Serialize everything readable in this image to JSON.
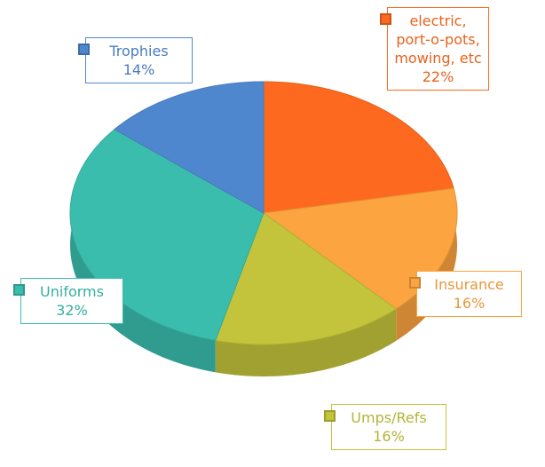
{
  "chart_data": {
    "type": "pie",
    "categories": [
      "electric, port-o-pots, mowing, etc",
      "Insurance",
      "Umps/Refs",
      "Uniforms",
      "Trophies"
    ],
    "values": [
      22,
      16,
      16,
      32,
      14
    ],
    "value_labels": [
      "22%",
      "16%",
      "16%",
      "32%",
      "14%"
    ],
    "colors": [
      "#fd6a1f",
      "#fca43f",
      "#c3c43b",
      "#3bbdae",
      "#4f87cf"
    ]
  }
}
